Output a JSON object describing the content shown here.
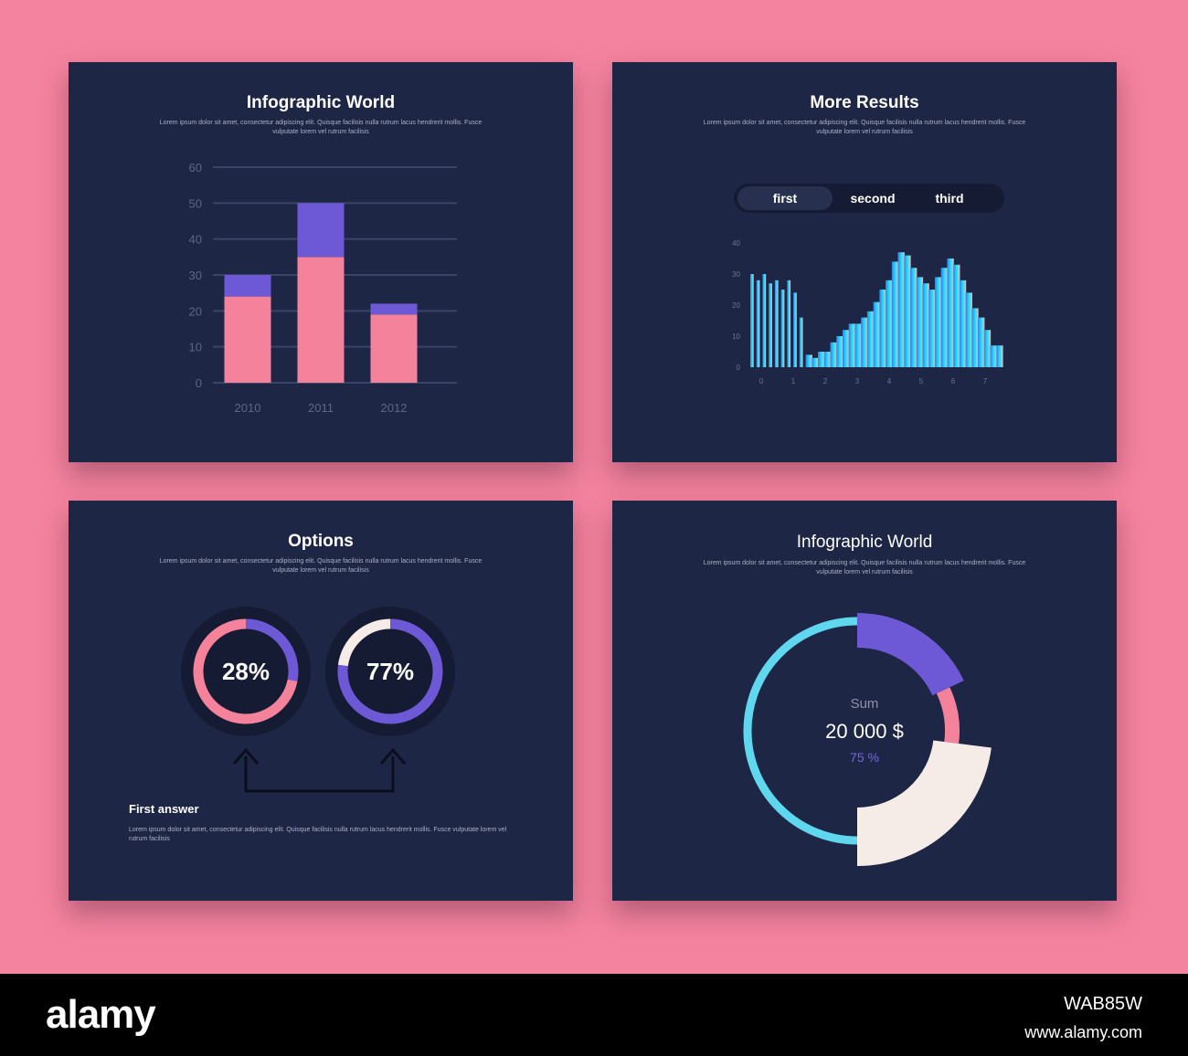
{
  "colors": {
    "background": "#f4839f",
    "card": "#1e2645",
    "pink": "#f4829a",
    "purple": "#6d58d6",
    "cyan": "#5fd8ef",
    "cream": "#f5ece8"
  },
  "panel1": {
    "title": "Infographic World",
    "subtitle": "Lorem ipsum dolor sit amet, consectetur adipiscing elit. Quisque facilisis nulla rutrum lacus hendrerit mollis. Fusce vulputate lorem vel rutrum facilisis"
  },
  "panel2": {
    "title": "More Results",
    "subtitle": "Lorem ipsum dolor sit amet, consectetur adipiscing elit. Quisque facilisis nulla rutrum lacus hendrerit mollis. Fusce vulputate lorem vel rutrum facilisis",
    "tabs": [
      "first",
      "second",
      "third"
    ]
  },
  "panel3": {
    "title": "Options",
    "subtitle": "Lorem ipsum dolor sit amet, consectetur adipiscing elit. Quisque facilisis nulla rutrum lacus hendrerit mollis. Fusce vulputate lorem vel rutrum facilisis",
    "section_title": "First answer",
    "section_text": "Lorem ipsum dolor sit amet, consectetur adipiscing elit. Quisque facilisis nulla rutrum lacus hendrerit mollis. Fusce vulputate lorem vel rutrum facilisis"
  },
  "panel4": {
    "title": "Infographic World",
    "subtitle": "Lorem ipsum dolor sit amet, consectetur adipiscing elit. Quisque facilisis nulla rutrum lacus hendrerit mollis. Fusce vulputate lorem vel rutrum facilisis",
    "center_label": "Sum",
    "center_value": "20 000 $",
    "center_percent": "75 %"
  },
  "watermark": {
    "logo": "alamy",
    "image_id": "WAB85W",
    "url": "www.alamy.com"
  },
  "chart_data": [
    {
      "type": "bar",
      "categories": [
        "2010",
        "2011",
        "2012"
      ],
      "series": [
        {
          "values": [
            24,
            35,
            19
          ],
          "color": "#f4829a"
        },
        {
          "values": [
            6,
            15,
            3
          ],
          "color": "#6d58d6"
        }
      ],
      "stacked": true,
      "ylim": [
        0,
        60
      ],
      "yticks": [
        0,
        10,
        20,
        30,
        40,
        50,
        60
      ],
      "grid": true
    },
    {
      "type": "bar",
      "x_ticks": [
        "0",
        "1",
        "2",
        "3",
        "4",
        "5",
        "6",
        "7"
      ],
      "y_ticks": [
        "0",
        "10",
        "20",
        "30",
        "40"
      ],
      "ylim": [
        0,
        40
      ],
      "values": [
        30,
        28,
        30,
        27,
        28,
        25,
        28,
        24,
        16,
        4,
        3,
        5,
        5,
        8,
        10,
        12,
        14,
        14,
        16,
        18,
        21,
        25,
        28,
        34,
        37,
        36,
        32,
        29,
        27,
        25,
        29,
        32,
        35,
        33,
        28,
        24,
        19,
        16,
        12,
        7,
        7
      ],
      "gradient": [
        "#3a7bf0",
        "#17e3f5",
        "#f3b5c8"
      ]
    },
    {
      "type": "pie",
      "name": "donut-left",
      "label": "28%",
      "segments": [
        {
          "value": 0.28,
          "color": "#6d58d6"
        },
        {
          "value": 0.72,
          "color": "#f4829a"
        }
      ]
    },
    {
      "type": "pie",
      "name": "donut-right",
      "label": "77%",
      "segments": [
        {
          "value": 0.77,
          "color": "#6d58d6"
        },
        {
          "value": 0.23,
          "color": "#f5ece8"
        }
      ]
    },
    {
      "type": "pie",
      "name": "sum-ring",
      "segments": [
        {
          "value": 0.18,
          "color": "#6d58d6"
        },
        {
          "value": 0.09,
          "color": "#f4829a"
        },
        {
          "value": 0.23,
          "color": "#f5ece8"
        },
        {
          "value": 0.5,
          "color": "#5fd8ef"
        }
      ]
    }
  ]
}
